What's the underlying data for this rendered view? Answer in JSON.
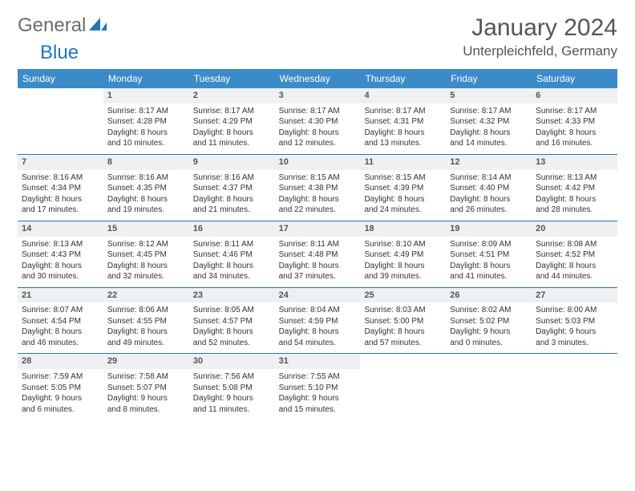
{
  "logo": {
    "part1": "General",
    "part2": "Blue"
  },
  "title": "January 2024",
  "location": "Unterpleichfeld, Germany",
  "colors": {
    "header_bg": "#3b8bc8",
    "header_text": "#ffffff",
    "daynum_bg": "#eef0f2",
    "week_divider": "#2376b8",
    "logo_gray": "#6b6b6b",
    "logo_blue": "#2376b8"
  },
  "day_headers": [
    "Sunday",
    "Monday",
    "Tuesday",
    "Wednesday",
    "Thursday",
    "Friday",
    "Saturday"
  ],
  "weeks": [
    [
      {
        "n": "",
        "sr": "",
        "ss": "",
        "d1": "",
        "d2": ""
      },
      {
        "n": "1",
        "sr": "Sunrise: 8:17 AM",
        "ss": "Sunset: 4:28 PM",
        "d1": "Daylight: 8 hours",
        "d2": "and 10 minutes."
      },
      {
        "n": "2",
        "sr": "Sunrise: 8:17 AM",
        "ss": "Sunset: 4:29 PM",
        "d1": "Daylight: 8 hours",
        "d2": "and 11 minutes."
      },
      {
        "n": "3",
        "sr": "Sunrise: 8:17 AM",
        "ss": "Sunset: 4:30 PM",
        "d1": "Daylight: 8 hours",
        "d2": "and 12 minutes."
      },
      {
        "n": "4",
        "sr": "Sunrise: 8:17 AM",
        "ss": "Sunset: 4:31 PM",
        "d1": "Daylight: 8 hours",
        "d2": "and 13 minutes."
      },
      {
        "n": "5",
        "sr": "Sunrise: 8:17 AM",
        "ss": "Sunset: 4:32 PM",
        "d1": "Daylight: 8 hours",
        "d2": "and 14 minutes."
      },
      {
        "n": "6",
        "sr": "Sunrise: 8:17 AM",
        "ss": "Sunset: 4:33 PM",
        "d1": "Daylight: 8 hours",
        "d2": "and 16 minutes."
      }
    ],
    [
      {
        "n": "7",
        "sr": "Sunrise: 8:16 AM",
        "ss": "Sunset: 4:34 PM",
        "d1": "Daylight: 8 hours",
        "d2": "and 17 minutes."
      },
      {
        "n": "8",
        "sr": "Sunrise: 8:16 AM",
        "ss": "Sunset: 4:35 PM",
        "d1": "Daylight: 8 hours",
        "d2": "and 19 minutes."
      },
      {
        "n": "9",
        "sr": "Sunrise: 8:16 AM",
        "ss": "Sunset: 4:37 PM",
        "d1": "Daylight: 8 hours",
        "d2": "and 21 minutes."
      },
      {
        "n": "10",
        "sr": "Sunrise: 8:15 AM",
        "ss": "Sunset: 4:38 PM",
        "d1": "Daylight: 8 hours",
        "d2": "and 22 minutes."
      },
      {
        "n": "11",
        "sr": "Sunrise: 8:15 AM",
        "ss": "Sunset: 4:39 PM",
        "d1": "Daylight: 8 hours",
        "d2": "and 24 minutes."
      },
      {
        "n": "12",
        "sr": "Sunrise: 8:14 AM",
        "ss": "Sunset: 4:40 PM",
        "d1": "Daylight: 8 hours",
        "d2": "and 26 minutes."
      },
      {
        "n": "13",
        "sr": "Sunrise: 8:13 AM",
        "ss": "Sunset: 4:42 PM",
        "d1": "Daylight: 8 hours",
        "d2": "and 28 minutes."
      }
    ],
    [
      {
        "n": "14",
        "sr": "Sunrise: 8:13 AM",
        "ss": "Sunset: 4:43 PM",
        "d1": "Daylight: 8 hours",
        "d2": "and 30 minutes."
      },
      {
        "n": "15",
        "sr": "Sunrise: 8:12 AM",
        "ss": "Sunset: 4:45 PM",
        "d1": "Daylight: 8 hours",
        "d2": "and 32 minutes."
      },
      {
        "n": "16",
        "sr": "Sunrise: 8:11 AM",
        "ss": "Sunset: 4:46 PM",
        "d1": "Daylight: 8 hours",
        "d2": "and 34 minutes."
      },
      {
        "n": "17",
        "sr": "Sunrise: 8:11 AM",
        "ss": "Sunset: 4:48 PM",
        "d1": "Daylight: 8 hours",
        "d2": "and 37 minutes."
      },
      {
        "n": "18",
        "sr": "Sunrise: 8:10 AM",
        "ss": "Sunset: 4:49 PM",
        "d1": "Daylight: 8 hours",
        "d2": "and 39 minutes."
      },
      {
        "n": "19",
        "sr": "Sunrise: 8:09 AM",
        "ss": "Sunset: 4:51 PM",
        "d1": "Daylight: 8 hours",
        "d2": "and 41 minutes."
      },
      {
        "n": "20",
        "sr": "Sunrise: 8:08 AM",
        "ss": "Sunset: 4:52 PM",
        "d1": "Daylight: 8 hours",
        "d2": "and 44 minutes."
      }
    ],
    [
      {
        "n": "21",
        "sr": "Sunrise: 8:07 AM",
        "ss": "Sunset: 4:54 PM",
        "d1": "Daylight: 8 hours",
        "d2": "and 46 minutes."
      },
      {
        "n": "22",
        "sr": "Sunrise: 8:06 AM",
        "ss": "Sunset: 4:55 PM",
        "d1": "Daylight: 8 hours",
        "d2": "and 49 minutes."
      },
      {
        "n": "23",
        "sr": "Sunrise: 8:05 AM",
        "ss": "Sunset: 4:57 PM",
        "d1": "Daylight: 8 hours",
        "d2": "and 52 minutes."
      },
      {
        "n": "24",
        "sr": "Sunrise: 8:04 AM",
        "ss": "Sunset: 4:59 PM",
        "d1": "Daylight: 8 hours",
        "d2": "and 54 minutes."
      },
      {
        "n": "25",
        "sr": "Sunrise: 8:03 AM",
        "ss": "Sunset: 5:00 PM",
        "d1": "Daylight: 8 hours",
        "d2": "and 57 minutes."
      },
      {
        "n": "26",
        "sr": "Sunrise: 8:02 AM",
        "ss": "Sunset: 5:02 PM",
        "d1": "Daylight: 9 hours",
        "d2": "and 0 minutes."
      },
      {
        "n": "27",
        "sr": "Sunrise: 8:00 AM",
        "ss": "Sunset: 5:03 PM",
        "d1": "Daylight: 9 hours",
        "d2": "and 3 minutes."
      }
    ],
    [
      {
        "n": "28",
        "sr": "Sunrise: 7:59 AM",
        "ss": "Sunset: 5:05 PM",
        "d1": "Daylight: 9 hours",
        "d2": "and 6 minutes."
      },
      {
        "n": "29",
        "sr": "Sunrise: 7:58 AM",
        "ss": "Sunset: 5:07 PM",
        "d1": "Daylight: 9 hours",
        "d2": "and 8 minutes."
      },
      {
        "n": "30",
        "sr": "Sunrise: 7:56 AM",
        "ss": "Sunset: 5:08 PM",
        "d1": "Daylight: 9 hours",
        "d2": "and 11 minutes."
      },
      {
        "n": "31",
        "sr": "Sunrise: 7:55 AM",
        "ss": "Sunset: 5:10 PM",
        "d1": "Daylight: 9 hours",
        "d2": "and 15 minutes."
      },
      {
        "n": "",
        "sr": "",
        "ss": "",
        "d1": "",
        "d2": ""
      },
      {
        "n": "",
        "sr": "",
        "ss": "",
        "d1": "",
        "d2": ""
      },
      {
        "n": "",
        "sr": "",
        "ss": "",
        "d1": "",
        "d2": ""
      }
    ]
  ]
}
